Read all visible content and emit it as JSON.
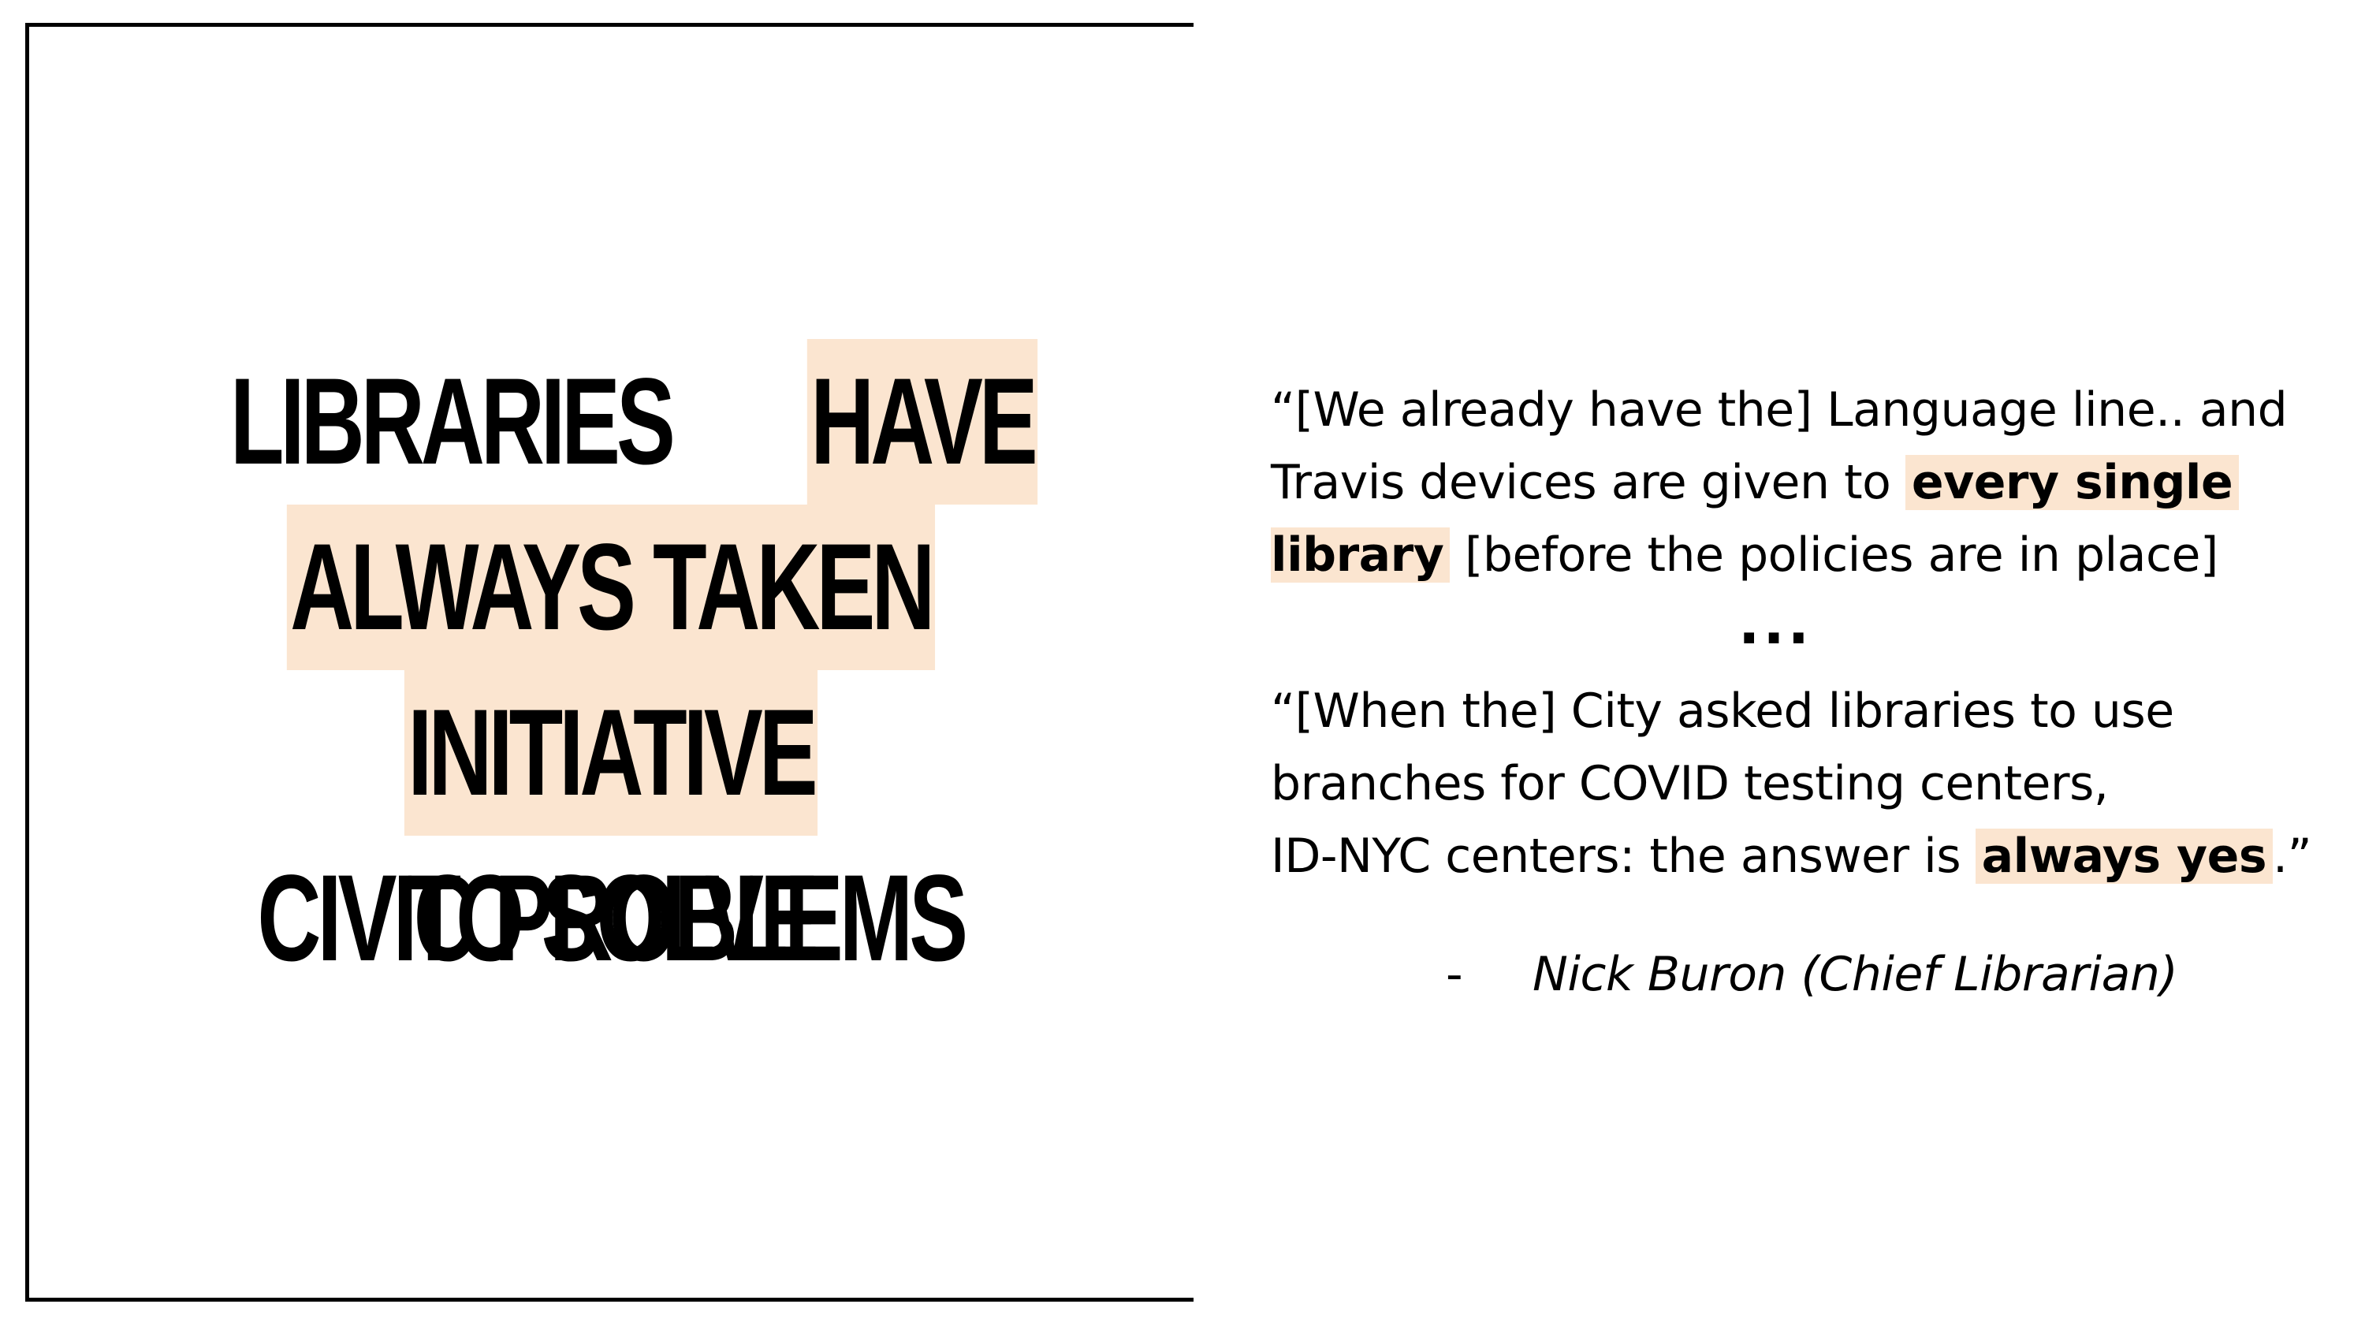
{
  "headline": {
    "line1_a": "LIBRARIES",
    "line1_b": "HAVE",
    "line2": "ALWAYS TAKEN",
    "line3_a": "INITIATIVE",
    "line3_b": "TO SOLVE",
    "line4": "CIVIC PROBLEMS"
  },
  "quote1": {
    "line1": "“[We already have the] Language line.. and",
    "line2_a": "Travis devices are given to ",
    "line2_b": "every single",
    "line3_a": "library",
    "line3_b": " [before the policies are in place]"
  },
  "ellipsis": "...",
  "quote2": {
    "line1": "“[When the] City asked libraries to use",
    "line2": "branches for COVID testing centers,",
    "line3_a": "ID-NYC centers: the answer is ",
    "line3_b": "always yes",
    "line3_c": ".”"
  },
  "attribution": {
    "dash": "-",
    "name": "Nick Buron (Chief Librarian)"
  },
  "colors": {
    "highlight": "#fbe5d0",
    "text": "#000000",
    "frame": "#000000"
  }
}
